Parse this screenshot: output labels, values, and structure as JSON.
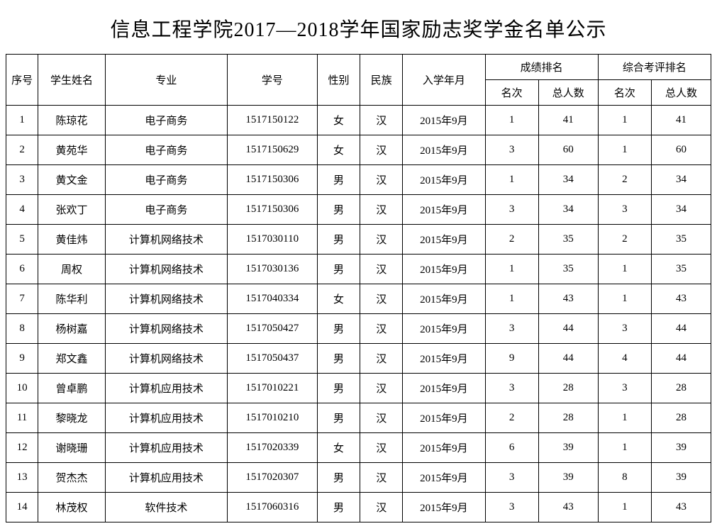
{
  "title": "信息工程学院2017—2018学年国家励志奖学金名单公示",
  "headers": {
    "idx": "序号",
    "name": "学生姓名",
    "major": "专业",
    "sid": "学号",
    "gender": "性别",
    "ethnicity": "民族",
    "enroll": "入学年月",
    "grade_group": "成绩排名",
    "eval_group": "综合考评排名",
    "rank": "名次",
    "total": "总人数"
  },
  "rows": [
    {
      "idx": "1",
      "name": "陈琼花",
      "major": "电子商务",
      "sid": "1517150122",
      "gender": "女",
      "eth": "汉",
      "enroll": "2015年9月",
      "gr": "1",
      "gt": "41",
      "er": "1",
      "et": "41"
    },
    {
      "idx": "2",
      "name": "黄苑华",
      "major": "电子商务",
      "sid": "1517150629",
      "gender": "女",
      "eth": "汉",
      "enroll": "2015年9月",
      "gr": "3",
      "gt": "60",
      "er": "1",
      "et": "60"
    },
    {
      "idx": "3",
      "name": "黄文金",
      "major": "电子商务",
      "sid": "1517150306",
      "gender": "男",
      "eth": "汉",
      "enroll": "2015年9月",
      "gr": "1",
      "gt": "34",
      "er": "2",
      "et": "34"
    },
    {
      "idx": "4",
      "name": "张欢丁",
      "major": "电子商务",
      "sid": "1517150306",
      "gender": "男",
      "eth": "汉",
      "enroll": "2015年9月",
      "gr": "3",
      "gt": "34",
      "er": "3",
      "et": "34"
    },
    {
      "idx": "5",
      "name": "黄佳炜",
      "major": "计算机网络技术",
      "sid": "1517030110",
      "gender": "男",
      "eth": "汉",
      "enroll": "2015年9月",
      "gr": "2",
      "gt": "35",
      "er": "2",
      "et": "35"
    },
    {
      "idx": "6",
      "name": "周权",
      "major": "计算机网络技术",
      "sid": "1517030136",
      "gender": "男",
      "eth": "汉",
      "enroll": "2015年9月",
      "gr": "1",
      "gt": "35",
      "er": "1",
      "et": "35"
    },
    {
      "idx": "7",
      "name": "陈华利",
      "major": "计算机网络技术",
      "sid": "1517040334",
      "gender": "女",
      "eth": "汉",
      "enroll": "2015年9月",
      "gr": "1",
      "gt": "43",
      "er": "1",
      "et": "43"
    },
    {
      "idx": "8",
      "name": "杨树嘉",
      "major": "计算机网络技术",
      "sid": "1517050427",
      "gender": "男",
      "eth": "汉",
      "enroll": "2015年9月",
      "gr": "3",
      "gt": "44",
      "er": "3",
      "et": "44"
    },
    {
      "idx": "9",
      "name": "郑文鑫",
      "major": "计算机网络技术",
      "sid": "1517050437",
      "gender": "男",
      "eth": "汉",
      "enroll": "2015年9月",
      "gr": "9",
      "gt": "44",
      "er": "4",
      "et": "44"
    },
    {
      "idx": "10",
      "name": "曾卓鹏",
      "major": "计算机应用技术",
      "sid": "1517010221",
      "gender": "男",
      "eth": "汉",
      "enroll": "2015年9月",
      "gr": "3",
      "gt": "28",
      "er": "3",
      "et": "28"
    },
    {
      "idx": "11",
      "name": "黎晓龙",
      "major": "计算机应用技术",
      "sid": "1517010210",
      "gender": "男",
      "eth": "汉",
      "enroll": "2015年9月",
      "gr": "2",
      "gt": "28",
      "er": "1",
      "et": "28"
    },
    {
      "idx": "12",
      "name": "谢晓珊",
      "major": "计算机应用技术",
      "sid": "1517020339",
      "gender": "女",
      "eth": "汉",
      "enroll": "2015年9月",
      "gr": "6",
      "gt": "39",
      "er": "1",
      "et": "39"
    },
    {
      "idx": "13",
      "name": "贺杰杰",
      "major": "计算机应用技术",
      "sid": "1517020307",
      "gender": "男",
      "eth": "汉",
      "enroll": "2015年9月",
      "gr": "3",
      "gt": "39",
      "er": "8",
      "et": "39"
    },
    {
      "idx": "14",
      "name": "林茂权",
      "major": "软件技术",
      "sid": "1517060316",
      "gender": "男",
      "eth": "汉",
      "enroll": "2015年9月",
      "gr": "3",
      "gt": "43",
      "er": "1",
      "et": "43"
    }
  ],
  "styling": {
    "border_color": "#000000",
    "background_color": "#ffffff",
    "title_fontsize": 28,
    "cell_fontsize": 15,
    "header_row_height": 36,
    "data_row_height": 42,
    "font_family": "SimSun",
    "col_widths": {
      "idx": 42,
      "name": 88,
      "major": 160,
      "sid": 118,
      "gender": 56,
      "eth": 56,
      "enroll": 108,
      "rank": 70,
      "total": 78
    }
  }
}
